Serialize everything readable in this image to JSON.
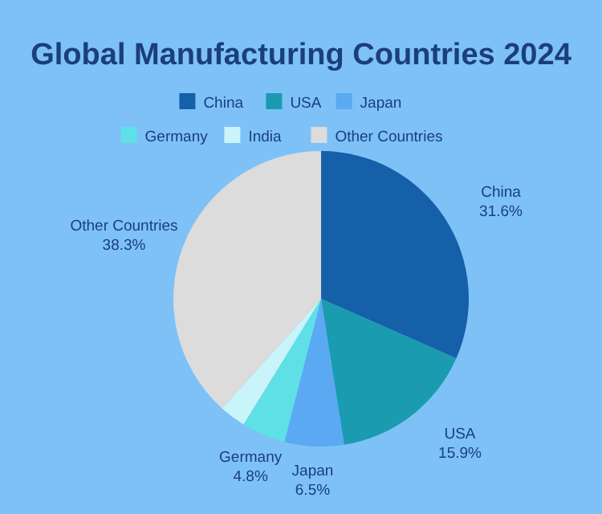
{
  "chart_data": {
    "type": "pie",
    "title": "Global Manufacturing Countries 2024",
    "categories": [
      "China",
      "USA",
      "Japan",
      "Germany",
      "India",
      "Other Countries"
    ],
    "values": [
      31.6,
      15.9,
      6.5,
      4.8,
      2.9,
      38.3
    ],
    "value_labels": [
      "31.6%",
      "15.9%",
      "6.5%",
      "4.8%",
      null,
      "38.3%"
    ],
    "colors": [
      "#1560a8",
      "#1a9bb0",
      "#5aa9f2",
      "#5fe0e6",
      "#c8f4fa",
      "#dcdcdc"
    ],
    "legend": "top"
  }
}
